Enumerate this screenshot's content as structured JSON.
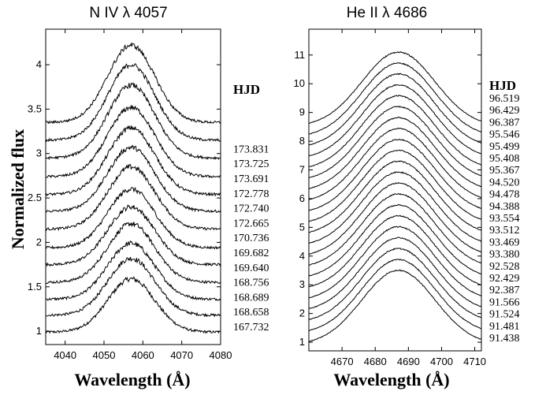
{
  "chart_data": [
    {
      "type": "line",
      "title": "N IV λ 4057",
      "xlabel": "Wavelength (Å)",
      "ylabel": "Normalized flux",
      "xlim": [
        4035,
        4080
      ],
      "ylim": [
        0.85,
        4.4
      ],
      "x_ticks": [
        4040,
        4050,
        4060,
        4070,
        4080
      ],
      "y_ticks": [
        1,
        1.5,
        2,
        2.5,
        3,
        3.5,
        4
      ],
      "y_tick_labels": [
        "1",
        "1.5",
        "2",
        "2.5",
        "3",
        "3.5",
        "4"
      ],
      "legend_title": "HJD",
      "line_center": 4057,
      "line_width": 6,
      "noise": 0.014,
      "series": [
        {
          "label": "167.732",
          "continuum": 0.99,
          "peak": 0.6
        },
        {
          "label": "168.658",
          "continuum": 1.18,
          "peak": 0.64
        },
        {
          "label": "168.689",
          "continuum": 1.36,
          "peak": 0.63
        },
        {
          "label": "168.756",
          "continuum": 1.55,
          "peak": 0.66
        },
        {
          "label": "169.640",
          "continuum": 1.75,
          "peak": 0.65
        },
        {
          "label": "169.682",
          "continuum": 1.94,
          "peak": 0.66
        },
        {
          "label": "170.736",
          "continuum": 2.15,
          "peak": 0.7
        },
        {
          "label": "172.665",
          "continuum": 2.35,
          "peak": 0.72
        },
        {
          "label": "172.740",
          "continuum": 2.54,
          "peak": 0.75
        },
        {
          "label": "172.778",
          "continuum": 2.74,
          "peak": 0.78
        },
        {
          "label": "173.691",
          "continuum": 2.95,
          "peak": 0.82
        },
        {
          "label": "173.725",
          "continuum": 3.15,
          "peak": 0.85
        },
        {
          "label": "173.831",
          "continuum": 3.35,
          "peak": 0.87
        }
      ]
    },
    {
      "type": "line",
      "title": "He II λ 4686",
      "xlabel": "Wavelength (Å)",
      "ylabel": "",
      "xlim": [
        4660,
        4712
      ],
      "ylim": [
        0.7,
        11.9
      ],
      "x_ticks": [
        4670,
        4680,
        4690,
        4700,
        4710
      ],
      "y_ticks": [
        1,
        2,
        3,
        4,
        5,
        6,
        7,
        8,
        9,
        10,
        11
      ],
      "y_tick_labels": [
        "1",
        "2",
        "3",
        "4",
        "5",
        "6",
        "7",
        "8",
        "9",
        "10",
        "11"
      ],
      "legend_title": "HJD",
      "line_center": 4687,
      "line_width": 11,
      "noise": 0.01,
      "series": [
        {
          "label": "91.438",
          "continuum": 0.9,
          "peak": 2.6
        },
        {
          "label": "91.481",
          "continuum": 1.28,
          "peak": 2.6
        },
        {
          "label": "91.524",
          "continuum": 1.66,
          "peak": 2.6
        },
        {
          "label": "91.566",
          "continuum": 2.04,
          "peak": 2.6
        },
        {
          "label": "92.387",
          "continuum": 2.42,
          "peak": 2.6
        },
        {
          "label": "92.429",
          "continuum": 2.8,
          "peak": 2.6
        },
        {
          "label": "92.528",
          "continuum": 3.18,
          "peak": 2.6
        },
        {
          "label": "93.380",
          "continuum": 3.56,
          "peak": 2.6
        },
        {
          "label": "93.469",
          "continuum": 3.94,
          "peak": 2.6
        },
        {
          "label": "93.512",
          "continuum": 4.32,
          "peak": 2.6
        },
        {
          "label": "93.554",
          "continuum": 4.7,
          "peak": 2.6
        },
        {
          "label": "94.388",
          "continuum": 5.08,
          "peak": 2.6
        },
        {
          "label": "94.478",
          "continuum": 5.46,
          "peak": 2.6
        },
        {
          "label": "94.520",
          "continuum": 5.84,
          "peak": 2.6
        },
        {
          "label": "95.367",
          "continuum": 6.22,
          "peak": 2.6
        },
        {
          "label": "95.408",
          "continuum": 6.6,
          "peak": 2.6
        },
        {
          "label": "95.499",
          "continuum": 6.98,
          "peak": 2.6
        },
        {
          "label": "95.546",
          "continuum": 7.36,
          "peak": 2.6
        },
        {
          "label": "96.387",
          "continuum": 7.74,
          "peak": 2.6
        },
        {
          "label": "96.429",
          "continuum": 8.12,
          "peak": 2.6
        },
        {
          "label": "96.519",
          "continuum": 8.5,
          "peak": 2.6
        }
      ]
    }
  ]
}
